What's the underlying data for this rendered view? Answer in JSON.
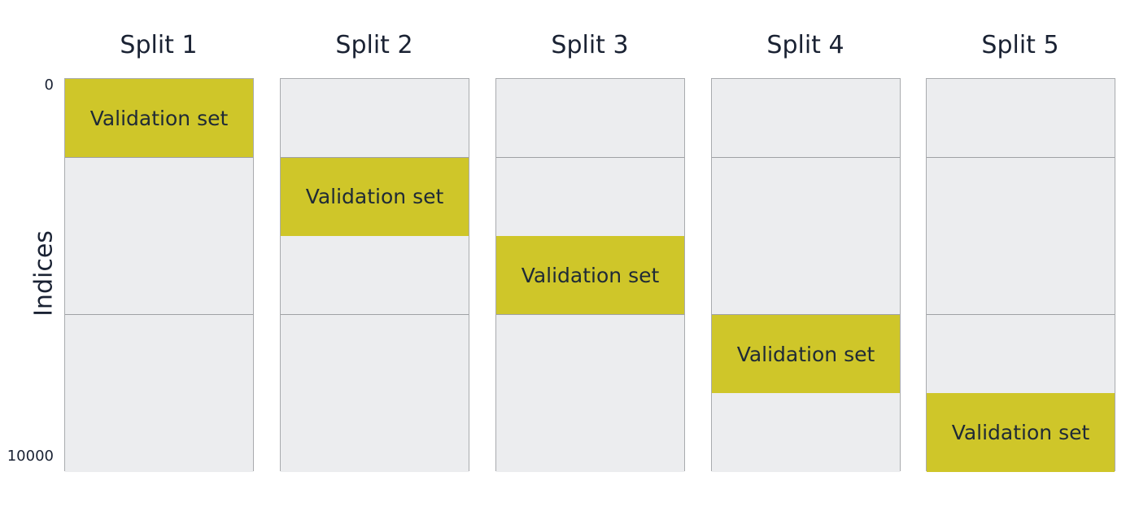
{
  "axis": {
    "label": "Indices",
    "tick_start": "0",
    "tick_end": "10000"
  },
  "colors": {
    "validation": "#cfc629",
    "training": "#ecedef",
    "border": "#a9abae",
    "text": "#1a2233"
  },
  "folds_per_split": 5,
  "splits": [
    {
      "title": "Split 1",
      "validation_fold": 1,
      "validation_label": "Validation set"
    },
    {
      "title": "Split 2",
      "validation_fold": 2,
      "validation_label": "Validation set"
    },
    {
      "title": "Split 3",
      "validation_fold": 3,
      "validation_label": "Validation set"
    },
    {
      "title": "Split 4",
      "validation_fold": 4,
      "validation_label": "Validation set"
    },
    {
      "title": "Split 5",
      "validation_fold": 5,
      "validation_label": "Validation set"
    }
  ]
}
